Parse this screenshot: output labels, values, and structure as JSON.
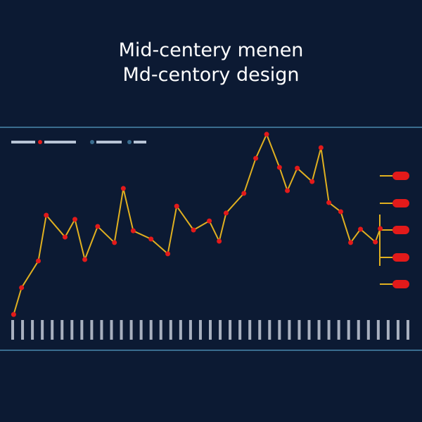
{
  "chart_data": {
    "type": "line",
    "title": [
      "Mid-centery menen",
      "Md-centory design"
    ],
    "x": [
      0.1,
      0.9,
      2.6,
      3.4,
      5.3,
      6.3,
      7.3,
      8.6,
      10.3,
      11.2,
      12.2,
      14.0,
      15.7,
      16.6,
      18.3,
      19.9,
      20.9,
      21.6,
      23.4,
      24.6,
      25.7,
      27.0,
      27.8,
      28.8,
      30.3,
      31.2,
      32.0,
      33.2,
      34.2,
      35.2,
      36.7,
      37.2
    ],
    "series": [
      {
        "color": "#e0b020",
        "marker_color": "#e31a1a",
        "values": [
          4.6,
          18.2,
          31.8,
          55,
          43.9,
          52.9,
          32.5,
          49.3,
          41.1,
          68.6,
          47.1,
          42.9,
          35.4,
          59.6,
          47.5,
          52.1,
          41.8,
          56.1,
          66.1,
          83.9,
          96.1,
          79.3,
          67.5,
          78.9,
          72.1,
          89.3,
          61.4,
          56.8,
          41.1,
          47.9,
          41.4,
          48.2
        ]
      }
    ],
    "xlim": [
      0,
      40
    ],
    "ylim": [
      0,
      100
    ]
  }
}
